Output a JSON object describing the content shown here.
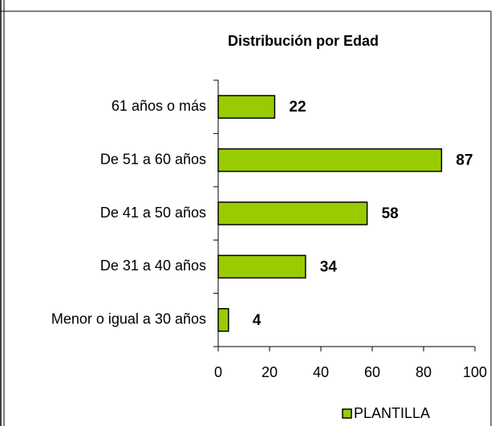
{
  "chart_data": {
    "type": "bar",
    "orientation": "horizontal",
    "title": "Distribución por Edad",
    "categories": [
      "61 años o más",
      "De 51 a 60 años",
      "De 41 a 50 años",
      "De 31 a 40 años",
      "Menor o igual a 30 años"
    ],
    "series": [
      {
        "name": "PLANTILLA",
        "color": "#99cc00",
        "values": [
          22,
          87,
          58,
          34,
          4
        ]
      }
    ],
    "xlim": [
      0,
      100
    ],
    "xticks": [
      0,
      20,
      40,
      60,
      80,
      100
    ],
    "legend": "bottom"
  }
}
